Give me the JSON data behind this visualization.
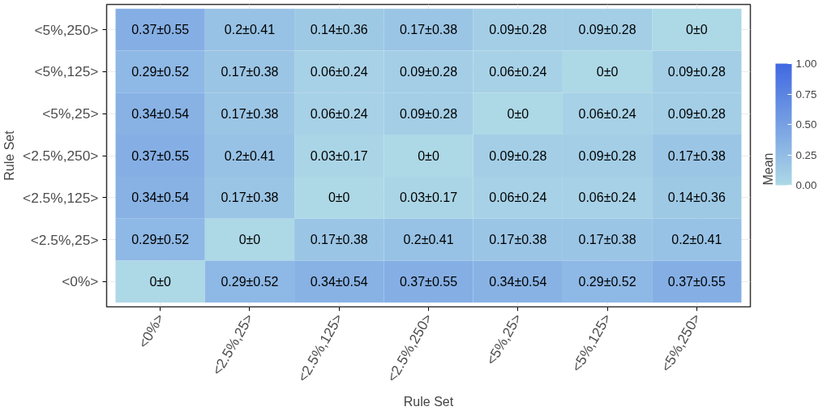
{
  "chart_data": {
    "type": "heatmap",
    "xlabel": "Rule Set",
    "ylabel": "Rule Set",
    "legend_title": "Mean",
    "grid": true,
    "categories": [
      "<0%>",
      "<2.5%,25>",
      "<2.5%,125>",
      "<2.5%,250>",
      "<5%,25>",
      "<5%,125>",
      "<5%,250>"
    ],
    "y_categories": [
      "<5%,250>",
      "<5%,125>",
      "<5%,25>",
      "<2.5%,250>",
      "<2.5%,125>",
      "<2.5%,25>",
      "<0%>"
    ],
    "cells": [
      [
        0.37,
        0.2,
        0.14,
        0.17,
        0.09,
        0.09,
        0
      ],
      [
        0.29,
        0.17,
        0.06,
        0.09,
        0.06,
        0,
        0.09
      ],
      [
        0.34,
        0.17,
        0.06,
        0.09,
        0,
        0.06,
        0.09
      ],
      [
        0.37,
        0.2,
        0.03,
        0,
        0.09,
        0.09,
        0.17
      ],
      [
        0.34,
        0.17,
        0,
        0.03,
        0.06,
        0.06,
        0.14
      ],
      [
        0.29,
        0,
        0.17,
        0.2,
        0.17,
        0.17,
        0.2
      ],
      [
        0,
        0.29,
        0.34,
        0.37,
        0.34,
        0.29,
        0.37
      ]
    ],
    "cell_labels": [
      [
        "0.37±0.55",
        "0.2±0.41",
        "0.14±0.36",
        "0.17±0.38",
        "0.09±0.28",
        "0.09±0.28",
        "0±0"
      ],
      [
        "0.29±0.52",
        "0.17±0.38",
        "0.06±0.24",
        "0.09±0.28",
        "0.06±0.24",
        "0±0",
        "0.09±0.28"
      ],
      [
        "0.34±0.54",
        "0.17±0.38",
        "0.06±0.24",
        "0.09±0.28",
        "0±0",
        "0.06±0.24",
        "0.09±0.28"
      ],
      [
        "0.37±0.55",
        "0.2±0.41",
        "0.03±0.17",
        "0±0",
        "0.09±0.28",
        "0.09±0.28",
        "0.17±0.38"
      ],
      [
        "0.34±0.54",
        "0.17±0.38",
        "0±0",
        "0.03±0.17",
        "0.06±0.24",
        "0.06±0.24",
        "0.14±0.36"
      ],
      [
        "0.29±0.52",
        "0±0",
        "0.17±0.38",
        "0.2±0.41",
        "0.17±0.38",
        "0.17±0.38",
        "0.2±0.41"
      ],
      [
        "0±0",
        "0.29±0.52",
        "0.34±0.54",
        "0.37±0.55",
        "0.34±0.54",
        "0.29±0.52",
        "0.37±0.55"
      ]
    ],
    "clim": [
      0,
      1
    ],
    "cticks": [
      {
        "value": 0,
        "label": "0.00"
      },
      {
        "value": 0.25,
        "label": "0.25"
      },
      {
        "value": 0.5,
        "label": "0.50"
      },
      {
        "value": 0.75,
        "label": "0.75"
      },
      {
        "value": 1,
        "label": "1.00"
      }
    ]
  }
}
